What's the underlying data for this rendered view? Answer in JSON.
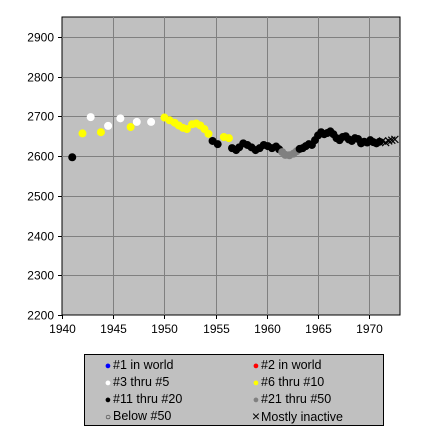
{
  "chart_data": {
    "type": "scatter",
    "title": "",
    "xlabel": "",
    "ylabel": "",
    "xlim": [
      1940,
      1973
    ],
    "ylim": [
      2200,
      2950
    ],
    "x_ticks": [
      1940,
      1945,
      1950,
      1955,
      1960,
      1965,
      1970
    ],
    "y_ticks": [
      2200,
      2300,
      2400,
      2500,
      2600,
      2700,
      2800,
      2900
    ],
    "grid": true,
    "plot_background": "#c0c0c0",
    "legend_position": "bottom",
    "legend": [
      {
        "key": "top1",
        "label": "#1 in world",
        "color": "#0000ff",
        "marker": "dot"
      },
      {
        "key": "top2",
        "label": "#2 in world",
        "color": "#ff0000",
        "marker": "dot"
      },
      {
        "key": "top3_5",
        "label": "#3 thru #5",
        "color": "#ffffff",
        "marker": "dot"
      },
      {
        "key": "top6_10",
        "label": "#6 thru #10",
        "color": "#ffff00",
        "marker": "dot"
      },
      {
        "key": "top11_20",
        "label": "#11 thru #20",
        "color": "#000000",
        "marker": "dot"
      },
      {
        "key": "top21_50",
        "label": "#21 thru #50",
        "color": "#808080",
        "marker": "dot"
      },
      {
        "key": "below50",
        "label": "Below #50",
        "color": "#ffffff",
        "marker": "ring"
      },
      {
        "key": "inactive",
        "label": "Mostly inactive",
        "color": "#000000",
        "marker": "x"
      }
    ],
    "series": [
      {
        "key": "top11_20",
        "points": [
          [
            1941.0,
            2597
          ]
        ]
      },
      {
        "key": "top6_10",
        "points": [
          [
            1942.0,
            2657
          ]
        ]
      },
      {
        "key": "top3_5",
        "points": [
          [
            1942.8,
            2698
          ],
          [
            1944.5,
            2676
          ]
        ]
      },
      {
        "key": "top6_10",
        "points": [
          [
            1943.8,
            2660
          ]
        ]
      },
      {
        "key": "top3_5",
        "points": [
          [
            1945.7,
            2695
          ],
          [
            1947.3,
            2686
          ],
          [
            1948.7,
            2686
          ]
        ]
      },
      {
        "key": "top6_10",
        "points": [
          [
            1946.7,
            2673
          ]
        ]
      },
      {
        "key": "top6_10",
        "points": [
          [
            1950.0,
            2697
          ],
          [
            1950.5,
            2690
          ],
          [
            1951.0,
            2684
          ],
          [
            1951.4,
            2677
          ],
          [
            1951.8,
            2671
          ],
          [
            1952.2,
            2668
          ],
          [
            1952.7,
            2680
          ],
          [
            1953.1,
            2682
          ],
          [
            1953.5,
            2677
          ],
          [
            1953.9,
            2668
          ],
          [
            1954.3,
            2656
          ],
          [
            1955.8,
            2648
          ],
          [
            1956.3,
            2645
          ]
        ]
      },
      {
        "key": "top11_20",
        "points": [
          [
            1954.7,
            2638
          ],
          [
            1955.2,
            2630
          ],
          [
            1956.6,
            2620
          ],
          [
            1957.0,
            2615
          ],
          [
            1957.3,
            2622
          ],
          [
            1957.7,
            2632
          ],
          [
            1958.1,
            2628
          ],
          [
            1958.5,
            2622
          ],
          [
            1958.9,
            2615
          ],
          [
            1959.3,
            2620
          ],
          [
            1959.7,
            2628
          ],
          [
            1960.1,
            2625
          ],
          [
            1960.5,
            2620
          ],
          [
            1960.9,
            2624
          ],
          [
            1961.2,
            2617
          ]
        ]
      },
      {
        "key": "top21_50",
        "points": [
          [
            1961.5,
            2610
          ],
          [
            1961.8,
            2603
          ],
          [
            1962.2,
            2602
          ],
          [
            1962.6,
            2606
          ],
          [
            1962.9,
            2612
          ]
        ]
      },
      {
        "key": "top11_20",
        "points": [
          [
            1963.2,
            2618
          ],
          [
            1963.5,
            2620
          ],
          [
            1963.8,
            2625
          ],
          [
            1964.1,
            2630
          ],
          [
            1964.4,
            2628
          ],
          [
            1964.7,
            2640
          ],
          [
            1965.0,
            2652
          ],
          [
            1965.3,
            2660
          ],
          [
            1965.6,
            2655
          ],
          [
            1965.9,
            2658
          ],
          [
            1966.2,
            2662
          ],
          [
            1966.5,
            2655
          ],
          [
            1966.8,
            2645
          ],
          [
            1967.1,
            2640
          ],
          [
            1967.4,
            2648
          ],
          [
            1967.7,
            2650
          ],
          [
            1968.0,
            2642
          ],
          [
            1968.3,
            2638
          ],
          [
            1968.6,
            2645
          ],
          [
            1968.9,
            2643
          ],
          [
            1969.2,
            2632
          ],
          [
            1969.5,
            2636
          ],
          [
            1969.8,
            2634
          ],
          [
            1970.1,
            2640
          ],
          [
            1970.4,
            2635
          ],
          [
            1970.7,
            2632
          ],
          [
            1971.0,
            2636
          ]
        ]
      },
      {
        "key": "inactive",
        "points": [
          [
            1971.3,
            2638
          ],
          [
            1971.6,
            2634
          ],
          [
            1971.9,
            2638
          ],
          [
            1972.2,
            2640
          ],
          [
            1972.5,
            2642
          ]
        ]
      }
    ]
  }
}
